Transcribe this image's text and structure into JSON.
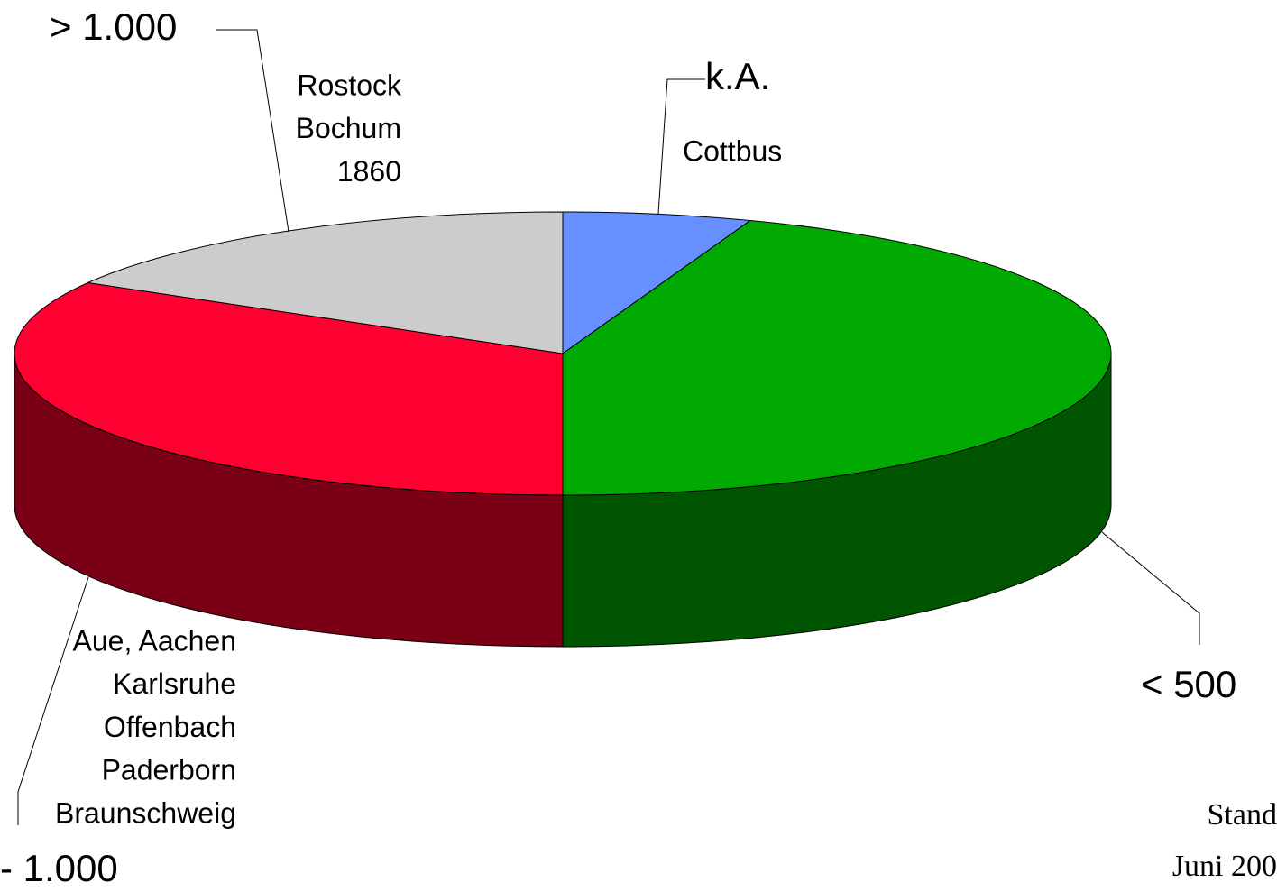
{
  "chart_data": {
    "type": "pie3d",
    "categories": [
      "k.A.",
      "< 500",
      "- 1.000",
      "> 1.000"
    ],
    "values": [
      1,
      8,
      6,
      3
    ],
    "colors": [
      "#6690ff",
      "#00aa00",
      "#ff0030",
      "#cccccc"
    ],
    "side_colors": [
      "#3355aa",
      "#005500",
      "#7a0015",
      "#888888"
    ],
    "annotations": [
      [
        "Cottbus"
      ],
      [],
      [
        "Aue, Aachen",
        "Karlsruhe",
        "Offenbach",
        "Paderborn",
        "Braunschweig"
      ],
      [
        "Rostock",
        "Bochum",
        "1860"
      ]
    ],
    "note": [
      "Stand",
      "Juni 200"
    ]
  }
}
